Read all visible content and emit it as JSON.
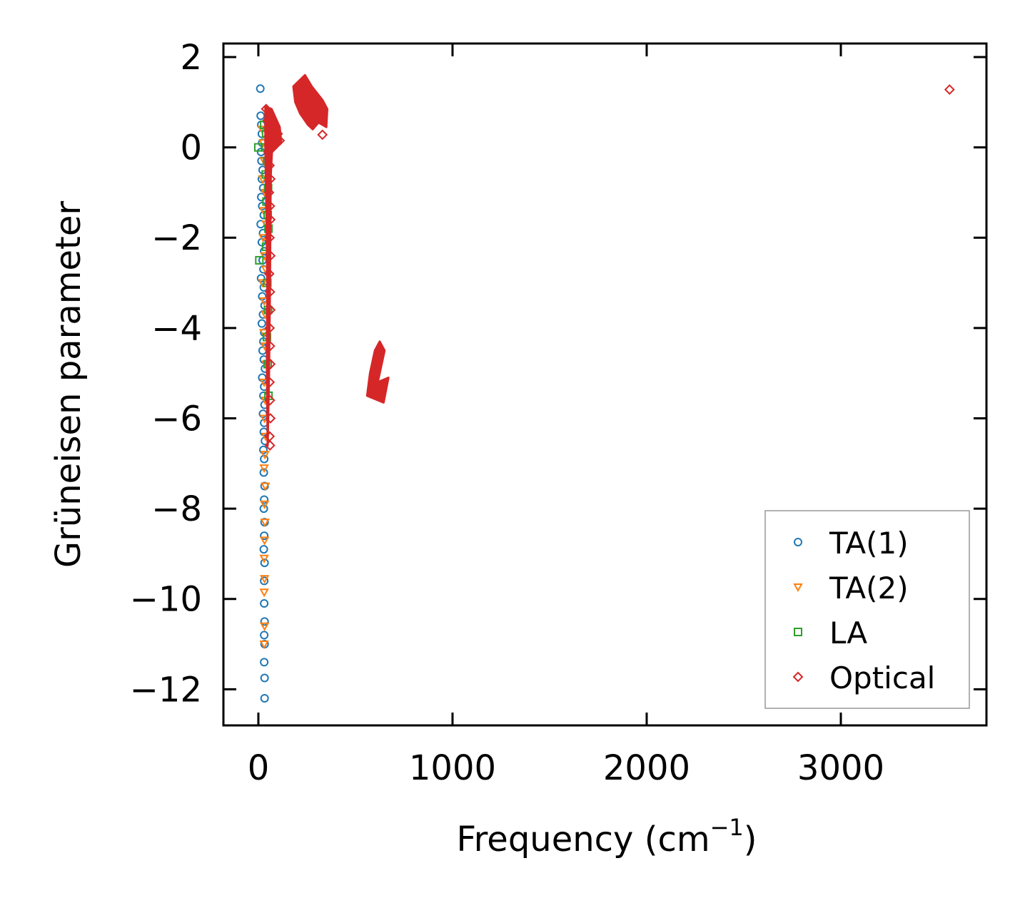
{
  "chart_data": {
    "type": "scatter",
    "xlabel": "Frequency (cm",
    "xlabel_sup": "−1",
    "xlabel_suffix": ")",
    "ylabel": "Grüneisen parameter",
    "xlim": [
      -180,
      3750
    ],
    "ylim": [
      -12.8,
      2.3
    ],
    "xticks": [
      0,
      1000,
      2000,
      3000
    ],
    "xtick_labels": [
      "0",
      "1000",
      "2000",
      "3000"
    ],
    "yticks": [
      2,
      0,
      -2,
      -4,
      -6,
      -8,
      -10,
      -12
    ],
    "ytick_labels": [
      "2",
      "0",
      "−2",
      "−4",
      "−6",
      "−8",
      "−10",
      "−12"
    ],
    "grid": false,
    "legend_position": "bottom-right",
    "series": [
      {
        "name": "TA(1)",
        "marker": "circle",
        "color": "#1f77b4",
        "points": [
          [
            10,
            1.3
          ],
          [
            12,
            0.7
          ],
          [
            15,
            0.5
          ],
          [
            18,
            0.3
          ],
          [
            20,
            0.1
          ],
          [
            14,
            -0.1
          ],
          [
            16,
            -0.3
          ],
          [
            22,
            -0.5
          ],
          [
            18,
            -0.7
          ],
          [
            25,
            -0.9
          ],
          [
            15,
            -1.1
          ],
          [
            20,
            -1.3
          ],
          [
            28,
            -1.5
          ],
          [
            12,
            -1.7
          ],
          [
            24,
            -1.9
          ],
          [
            18,
            -2.1
          ],
          [
            30,
            -2.3
          ],
          [
            22,
            -2.5
          ],
          [
            26,
            -2.7
          ],
          [
            14,
            -2.9
          ],
          [
            28,
            -3.1
          ],
          [
            20,
            -3.3
          ],
          [
            32,
            -3.5
          ],
          [
            24,
            -3.7
          ],
          [
            18,
            -3.9
          ],
          [
            30,
            -4.1
          ],
          [
            26,
            -4.3
          ],
          [
            22,
            -4.5
          ],
          [
            28,
            -4.7
          ],
          [
            34,
            -4.9
          ],
          [
            20,
            -5.1
          ],
          [
            30,
            -5.3
          ],
          [
            26,
            -5.5
          ],
          [
            32,
            -5.7
          ],
          [
            24,
            -5.9
          ],
          [
            30,
            -6.1
          ],
          [
            28,
            -6.3
          ],
          [
            34,
            -6.5
          ],
          [
            26,
            -6.7
          ],
          [
            30,
            -6.9
          ],
          [
            28,
            -7.2
          ],
          [
            32,
            -7.5
          ],
          [
            30,
            -7.8
          ],
          [
            28,
            -8.0
          ],
          [
            32,
            -8.3
          ],
          [
            30,
            -8.6
          ],
          [
            28,
            -8.9
          ],
          [
            32,
            -9.2
          ],
          [
            30,
            -9.6
          ],
          [
            30,
            -10.1
          ],
          [
            32,
            -10.5
          ],
          [
            30,
            -10.8
          ],
          [
            32,
            -11.0
          ],
          [
            30,
            -11.4
          ],
          [
            32,
            -11.75
          ],
          [
            32,
            -12.2
          ]
        ]
      },
      {
        "name": "TA(2)",
        "marker": "triangle-down",
        "color": "#ff7f0e",
        "points": [
          [
            20,
            0.4
          ],
          [
            25,
            0.1
          ],
          [
            30,
            -0.3
          ],
          [
            22,
            -0.7
          ],
          [
            35,
            -1.0
          ],
          [
            28,
            -1.4
          ],
          [
            40,
            -1.7
          ],
          [
            25,
            -2.0
          ],
          [
            32,
            -2.4
          ],
          [
            38,
            -2.7
          ],
          [
            22,
            -3.0
          ],
          [
            30,
            -3.4
          ],
          [
            36,
            -3.7
          ],
          [
            28,
            -4.1
          ],
          [
            34,
            -4.4
          ],
          [
            40,
            -4.8
          ],
          [
            30,
            -5.2
          ],
          [
            36,
            -5.6
          ],
          [
            32,
            -6.0
          ],
          [
            38,
            -6.4
          ],
          [
            34,
            -6.8
          ],
          [
            30,
            -7.1
          ],
          [
            36,
            -7.5
          ],
          [
            32,
            -7.9
          ],
          [
            34,
            -8.3
          ],
          [
            32,
            -8.7
          ],
          [
            30,
            -9.1
          ],
          [
            32,
            -9.55
          ],
          [
            30,
            -9.85
          ],
          [
            32,
            -10.6
          ],
          [
            30,
            -11.0
          ]
        ]
      },
      {
        "name": "LA",
        "marker": "square",
        "color": "#2ca02c",
        "points": [
          [
            0,
            0.0
          ],
          [
            30,
            0.5
          ],
          [
            40,
            0.3
          ],
          [
            35,
            0.0
          ],
          [
            45,
            -0.3
          ],
          [
            38,
            -0.6
          ],
          [
            50,
            -0.9
          ],
          [
            42,
            -1.2
          ],
          [
            48,
            -1.5
          ],
          [
            52,
            -1.8
          ],
          [
            5,
            -2.5
          ],
          [
            40,
            -2.2
          ],
          [
            46,
            -3.0
          ],
          [
            50,
            -3.6
          ],
          [
            44,
            -4.2
          ],
          [
            48,
            -4.8
          ],
          [
            52,
            -5.5
          ]
        ]
      },
      {
        "name": "Optical",
        "marker": "diamond",
        "color": "#d62728",
        "points": [
          [
            330,
            0.28
          ],
          [
            3560,
            1.28
          ],
          [
            40,
            0.85
          ],
          [
            48,
            0.6
          ],
          [
            55,
            0.35
          ],
          [
            60,
            0.15
          ],
          [
            52,
            -0.1
          ],
          [
            58,
            -0.4
          ],
          [
            62,
            -0.7
          ],
          [
            55,
            -1.0
          ],
          [
            60,
            -1.3
          ],
          [
            62,
            -1.6
          ],
          [
            58,
            -2.0
          ],
          [
            62,
            -2.4
          ],
          [
            56,
            -2.8
          ],
          [
            60,
            -3.2
          ],
          [
            62,
            -3.6
          ],
          [
            58,
            -4.0
          ],
          [
            60,
            -4.4
          ],
          [
            62,
            -4.8
          ],
          [
            58,
            -5.2
          ],
          [
            60,
            -5.6
          ],
          [
            62,
            -6.0
          ],
          [
            58,
            -6.4
          ],
          [
            60,
            -6.6
          ],
          [
            70,
            0.6
          ],
          [
            85,
            0.45
          ],
          [
            100,
            0.3
          ],
          [
            110,
            0.15
          ],
          [
            90,
            0.2
          ],
          [
            75,
            0.0
          ]
        ],
        "clusters": [
          {
            "polygon": [
              [
                36,
                0.9
              ],
              [
                68,
                0.85
              ],
              [
                110,
                0.45
              ],
              [
                118,
                0.1
              ],
              [
                70,
                -0.1
              ],
              [
                64,
                -0.6
              ],
              [
                62,
                -1.5
              ],
              [
                60,
                -3.0
              ],
              [
                55,
                -5.0
              ],
              [
                48,
                -6.6
              ],
              [
                44,
                -5.0
              ],
              [
                46,
                -3.0
              ],
              [
                40,
                -1.0
              ],
              [
                36,
                0.0
              ]
            ]
          },
          {
            "polygon": [
              [
                180,
                1.35
              ],
              [
                240,
                1.6
              ],
              [
                275,
                1.35
              ],
              [
                330,
                1.05
              ],
              [
                355,
                0.85
              ],
              [
                350,
                0.45
              ],
              [
                310,
                0.55
              ],
              [
                280,
                0.4
              ],
              [
                255,
                0.5
              ],
              [
                215,
                0.75
              ],
              [
                190,
                1.0
              ]
            ]
          },
          {
            "polygon": [
              [
                600,
                -4.5
              ],
              [
                625,
                -4.3
              ],
              [
                650,
                -4.5
              ],
              [
                615,
                -5.2
              ],
              [
                670,
                -5.1
              ],
              [
                645,
                -5.65
              ],
              [
                560,
                -5.5
              ],
              [
                575,
                -5.0
              ]
            ]
          }
        ]
      }
    ]
  }
}
